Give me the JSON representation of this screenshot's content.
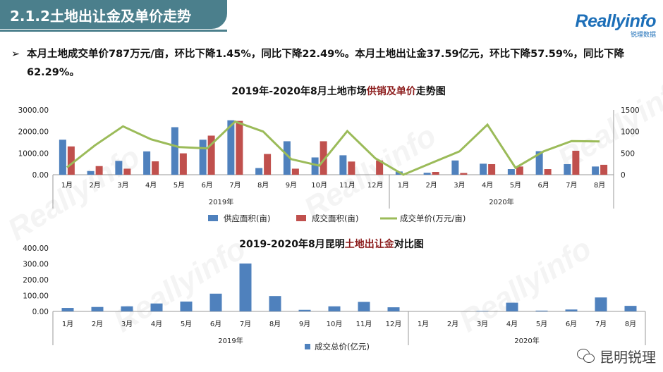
{
  "header": {
    "title": "2.1.2土地出让金及单价走势",
    "logo_text": "Reallyinfo",
    "logo_sub": "锐理数据",
    "accent": "#4b7f8c"
  },
  "summary": {
    "bullet": "➢",
    "text": "本月土地成交单价787万元/亩，环比下降1.45%，同比下降22.49%。本月土地出让金37.59亿元，环比下降57.59%，同比下降62.29%。"
  },
  "footer": {
    "text": "昆明锐理",
    "icon": "wechat-icon"
  },
  "chart_data": [
    {
      "type": "bar",
      "title": "2019年-2020年8月土地市场供销及单价走势图",
      "categories": [
        "1月",
        "2月",
        "3月",
        "4月",
        "5月",
        "6月",
        "7月",
        "8月",
        "9月",
        "10月",
        "11月",
        "12月",
        "1月",
        "2月",
        "3月",
        "4月",
        "5月",
        "6月",
        "7月",
        "8月"
      ],
      "groups": [
        {
          "label": "2019年",
          "span": 12
        },
        {
          "label": "2020年",
          "span": 8
        }
      ],
      "series": [
        {
          "name": "供应面积(亩)",
          "type": "bar",
          "axis": "left",
          "color": "#4f81bd",
          "values": [
            1620,
            170,
            640,
            1080,
            2200,
            1620,
            2520,
            310,
            1550,
            800,
            900,
            0,
            150,
            90,
            660,
            510,
            260,
            1090,
            490,
            380
          ]
        },
        {
          "name": "成交面积(亩)",
          "type": "bar",
          "axis": "left",
          "color": "#c0504d",
          "values": [
            1310,
            400,
            280,
            620,
            990,
            1810,
            2490,
            960,
            280,
            1550,
            610,
            660,
            0,
            130,
            80,
            490,
            380,
            260,
            1110,
            460
          ]
        },
        {
          "name": "成交单价(万元/亩)",
          "type": "line",
          "axis": "right",
          "color": "#9bbb59",
          "values": [
            170,
            680,
            1120,
            820,
            640,
            610,
            1230,
            1000,
            360,
            210,
            1010,
            380,
            0,
            270,
            540,
            1160,
            160,
            540,
            780,
            770
          ]
        }
      ],
      "ylim_left": [
        0,
        3000
      ],
      "yticks_left": [
        "0.00",
        "1000.00",
        "2000.00",
        "3000.00"
      ],
      "ylim_right": [
        0,
        1500
      ],
      "yticks_right": [
        "0",
        "500",
        "1000",
        "1500"
      ],
      "legend": "bottom"
    },
    {
      "type": "bar",
      "title": "2019-2020年8月昆明土地出让金对比图",
      "categories": [
        "1月",
        "2月",
        "3月",
        "4月",
        "5月",
        "6月",
        "7月",
        "8月",
        "9月",
        "10月",
        "11月",
        "12月",
        "1月",
        "2月",
        "3月",
        "4月",
        "5月",
        "6月",
        "7月",
        "8月"
      ],
      "groups": [
        {
          "label": "2019年",
          "span": 12
        },
        {
          "label": "2020年",
          "span": 8
        }
      ],
      "series": [
        {
          "name": "成交总价(亿元)",
          "type": "bar",
          "color": "#4f81bd",
          "values": [
            22,
            28,
            32,
            50,
            62,
            112,
            302,
            97,
            10,
            32,
            60,
            26,
            0,
            0,
            3,
            55,
            5,
            12,
            88,
            35
          ]
        }
      ],
      "ylim": [
        0,
        400
      ],
      "yticks": [
        "0.00",
        "100.00",
        "200.00",
        "300.00",
        "400.00"
      ],
      "legend": "bottom"
    }
  ]
}
